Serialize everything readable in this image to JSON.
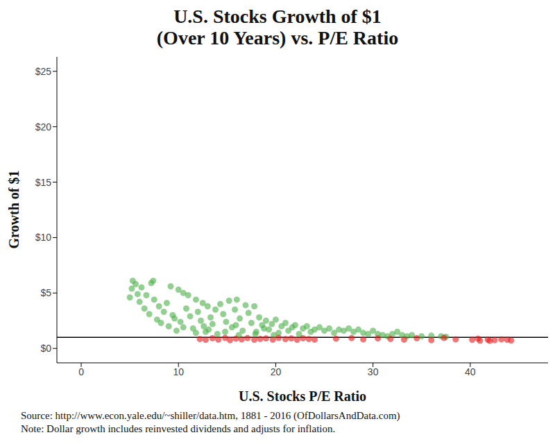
{
  "chart_data": {
    "type": "scatter",
    "title": [
      "U.S. Stocks Growth of $1",
      "(Over 10 Years) vs. P/E Ratio"
    ],
    "x_label": "U.S. Stocks P/E Ratio",
    "y_label": "Growth of $1",
    "source": "Source:  http://www.econ.yale.edu/~shiller/data.htm, 1881 - 2016 (OfDollarsAndData.com)",
    "note": "Note:  Dollar growth includes reinvested dividends and adjusts for inflation.",
    "xlim": [
      -2.5,
      48
    ],
    "xticks": [
      0,
      10,
      20,
      30,
      40
    ],
    "ylim": [
      -1.3,
      26.3
    ],
    "yticks": [
      {
        "value": 0,
        "label": "$0"
      },
      {
        "value": 5,
        "label": "$5"
      },
      {
        "value": 10,
        "label": "$10"
      },
      {
        "value": 15,
        "label": "$15"
      },
      {
        "value": 20,
        "label": "$20"
      },
      {
        "value": 25,
        "label": "$25"
      }
    ],
    "hline": 1,
    "grid": false,
    "series": [
      {
        "color": "#4daf4a",
        "marker": "circle",
        "x": [
          5,
          5.2,
          5.3,
          5.6,
          5.8,
          6.0,
          6.2,
          6.5,
          6.7,
          7.0,
          7.2,
          7.4,
          7.5,
          7.8,
          8.0,
          8.2,
          8.5,
          8.8,
          9.0,
          9.2,
          9.4,
          9.6,
          9.8,
          10.0,
          10.2,
          10.5,
          10.8,
          11.0,
          11.2,
          11.5,
          11.8,
          12.0,
          12.3,
          12.5,
          12.8,
          13.0,
          13.3,
          13.5,
          13.8,
          14.0,
          14.3,
          14.6,
          14.9,
          15.2,
          15.5,
          15.8,
          16.0,
          16.3,
          16.6,
          16.9,
          17.2,
          17.5,
          17.8,
          18.0,
          18.3,
          18.6,
          19.0,
          19.3,
          19.6,
          20.0,
          20.3,
          20.6,
          21.0,
          21.3,
          21.7,
          22.0,
          22.4,
          22.8,
          23.2,
          23.6,
          24.0,
          24.5,
          25.0,
          25.5,
          26.0,
          26.5,
          27.0,
          27.5,
          28.0,
          28.5,
          29.0,
          29.5,
          30.0,
          30.5,
          31.0,
          31.5,
          32.0,
          32.5,
          33.0,
          33.5,
          34.0,
          35.0,
          36.0,
          37.0,
          37.5,
          10.5,
          11.8,
          13.1,
          14.8,
          16.2,
          17.9,
          19.8,
          12.6,
          15.9,
          18.8
        ],
        "values": [
          4.6,
          5.4,
          6.1,
          5.8,
          4.9,
          4.2,
          5.5,
          3.6,
          4.8,
          3.1,
          5.9,
          6.1,
          4.4,
          2.6,
          3.8,
          2.3,
          3.3,
          4.1,
          2.0,
          5.6,
          3.0,
          2.7,
          1.6,
          5.3,
          2.4,
          5.0,
          3.6,
          4.8,
          2.9,
          1.8,
          4.4,
          3.3,
          2.5,
          4.1,
          1.5,
          3.8,
          2.8,
          2.2,
          3.5,
          1.3,
          4.0,
          3.1,
          2.4,
          4.3,
          1.9,
          3.5,
          4.4,
          2.7,
          1.6,
          3.9,
          3.2,
          2.3,
          3.8,
          1.5,
          2.8,
          2.1,
          2.5,
          1.7,
          2.2,
          2.6,
          1.4,
          2.0,
          2.3,
          1.6,
          1.9,
          2.1,
          1.3,
          1.8,
          2.0,
          1.5,
          1.7,
          1.9,
          1.6,
          1.8,
          1.4,
          1.7,
          1.6,
          1.8,
          1.5,
          1.7,
          1.4,
          1.3,
          1.6,
          1.3,
          1.2,
          1.1,
          1.3,
          1.5,
          1.2,
          1.1,
          1.2,
          1.1,
          1.15,
          1.1,
          1.05,
          1.9,
          1.4,
          1.7,
          1.5,
          1.2,
          1.3,
          1.2,
          2.0,
          2.1,
          1.8
        ]
      },
      {
        "color": "#e41a1c",
        "marker": "circle",
        "x": [
          12.2,
          12.8,
          13.5,
          14.1,
          14.8,
          15.3,
          15.9,
          16.5,
          17.1,
          17.8,
          18.4,
          19.0,
          19.7,
          20.3,
          21.0,
          21.6,
          22.2,
          22.8,
          23.4,
          24.0,
          26.2,
          27.8,
          29.0,
          30.5,
          31.8,
          33.2,
          34.5,
          36.0,
          37.3,
          38.5,
          40.2,
          41.0,
          41.8,
          42.5,
          43.2,
          43.8,
          44.2,
          40.8,
          42.0
        ],
        "values": [
          0.85,
          0.78,
          0.92,
          0.8,
          0.95,
          0.75,
          0.88,
          0.82,
          0.93,
          0.78,
          0.86,
          0.9,
          0.8,
          0.95,
          0.84,
          0.9,
          0.78,
          0.92,
          0.85,
          0.8,
          0.88,
          0.93,
          0.82,
          0.9,
          0.86,
          0.8,
          0.92,
          0.75,
          0.95,
          0.82,
          0.78,
          0.7,
          0.8,
          0.75,
          0.82,
          0.78,
          0.72,
          0.88,
          0.68
        ]
      }
    ]
  }
}
